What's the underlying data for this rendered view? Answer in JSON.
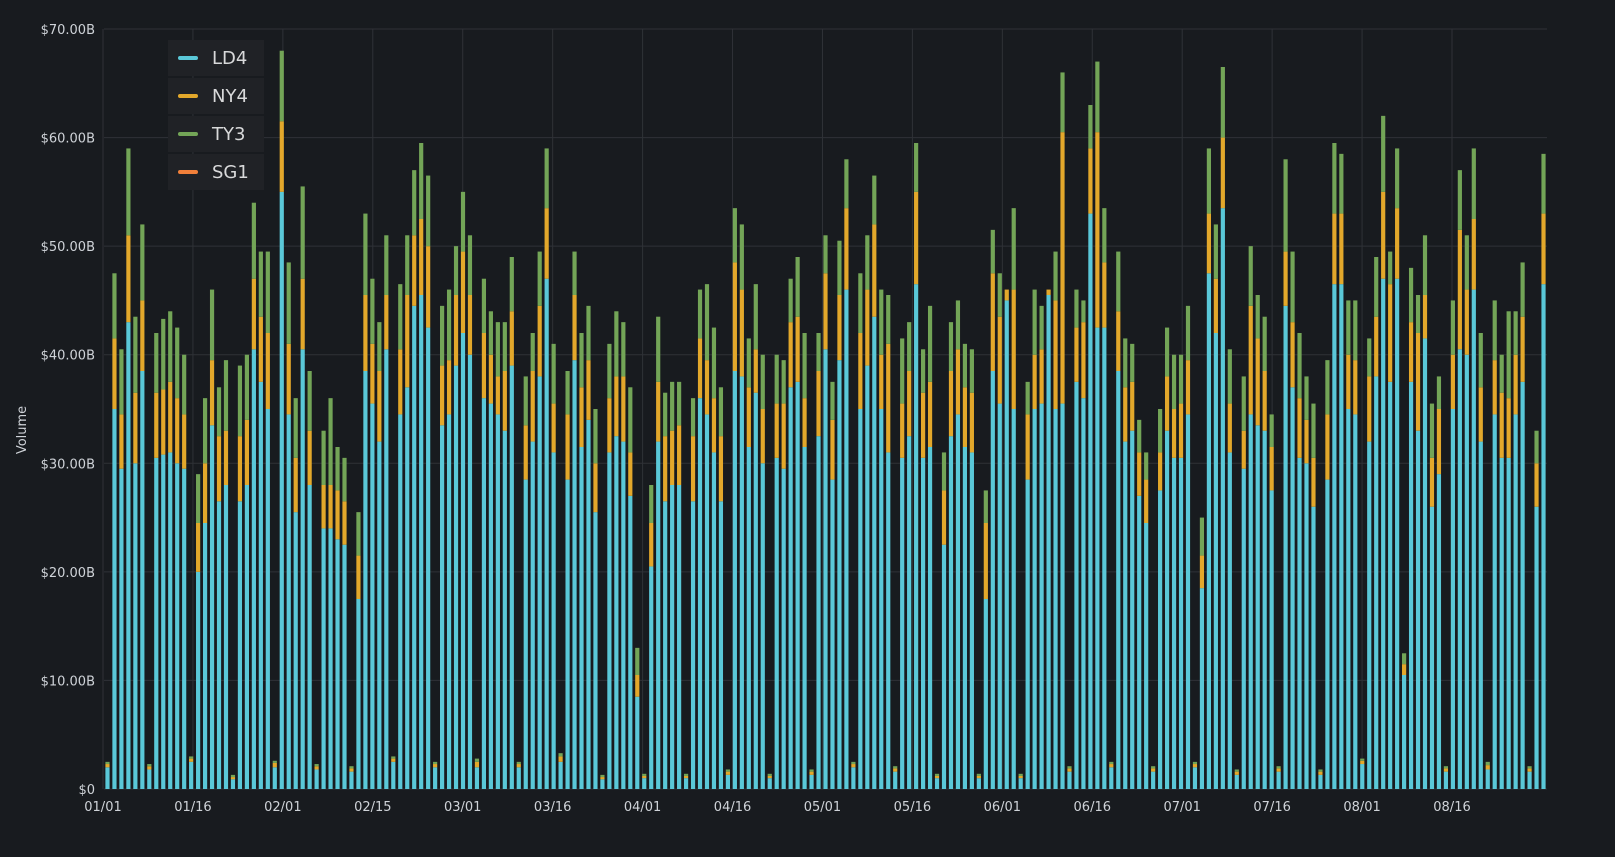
{
  "chart_data": {
    "type": "bar",
    "stacked": true,
    "ylabel": "Volume",
    "ylim": [
      0,
      70
    ],
    "y_unit": "billions USD",
    "y_ticks": [
      "$0",
      "$10.00B",
      "$20.00B",
      "$30.00B",
      "$40.00B",
      "$50.00B",
      "$60.00B",
      "$70.00B"
    ],
    "x_ticks": [
      "01/01",
      "01/16",
      "02/01",
      "02/15",
      "03/01",
      "03/16",
      "04/01",
      "04/16",
      "05/01",
      "05/16",
      "06/01",
      "06/16",
      "07/01",
      "07/16",
      "08/01",
      "08/16"
    ],
    "grid": true,
    "legend_placement": "top-left",
    "series_colors": {
      "LD4": "#5ac8d8",
      "NY4": "#e3a82b",
      "TY3": "#73a557",
      "SG1": "#f2803a"
    },
    "series_names": [
      "LD4",
      "NY4",
      "TY3",
      "SG1"
    ],
    "bars": [
      [
        2.0,
        0.3,
        0.2,
        0
      ],
      [
        35,
        6.5,
        6,
        0
      ],
      [
        29.5,
        5,
        6,
        0
      ],
      [
        43,
        8,
        8,
        0
      ],
      [
        30,
        6.5,
        7,
        0
      ],
      [
        38.5,
        6.5,
        7,
        0
      ],
      [
        1.8,
        0.3,
        0.2,
        0
      ],
      [
        30.5,
        6,
        5.5,
        0
      ],
      [
        30.8,
        6,
        6.5,
        0
      ],
      [
        31,
        6.5,
        6.5,
        0
      ],
      [
        30,
        6,
        6.5,
        0
      ],
      [
        29.5,
        5,
        5.5,
        0
      ],
      [
        2.5,
        0.3,
        0.2,
        0
      ],
      [
        20,
        4.5,
        4.5,
        0
      ],
      [
        24.5,
        5.5,
        6,
        0
      ],
      [
        33.5,
        6,
        6.5,
        0
      ],
      [
        26.5,
        6,
        4.5,
        0
      ],
      [
        28,
        5,
        6.5,
        0
      ],
      [
        0.9,
        0.2,
        0.2,
        0
      ],
      [
        26.5,
        6,
        6.5,
        0
      ],
      [
        28,
        6,
        6,
        0
      ],
      [
        40.5,
        6.5,
        7,
        0
      ],
      [
        37.5,
        6,
        6,
        0
      ],
      [
        35,
        7,
        7.5,
        0
      ],
      [
        2.0,
        0.4,
        0.2,
        0
      ],
      [
        55,
        6.5,
        6.5,
        0
      ],
      [
        34.5,
        6.5,
        7.5,
        0
      ],
      [
        25.5,
        5,
        5.5,
        0
      ],
      [
        40.5,
        6.5,
        8.5,
        0
      ],
      [
        28,
        5,
        5.5,
        0
      ],
      [
        1.8,
        0.3,
        0.2,
        0
      ],
      [
        24,
        4,
        5,
        0
      ],
      [
        24,
        4,
        8,
        0
      ],
      [
        23,
        4.5,
        4,
        0
      ],
      [
        22.5,
        4,
        4,
        0
      ],
      [
        1.6,
        0.3,
        0.2,
        0
      ],
      [
        17.5,
        4,
        4,
        0
      ],
      [
        38.5,
        7,
        7.5,
        0
      ],
      [
        35.5,
        5.5,
        6,
        0
      ],
      [
        32,
        6.5,
        4.5,
        0
      ],
      [
        40.5,
        5,
        5.5,
        0
      ],
      [
        2.5,
        0.3,
        0.2,
        0
      ],
      [
        34.5,
        6,
        6,
        0
      ],
      [
        37,
        8.5,
        5.5,
        0
      ],
      [
        44.5,
        6.5,
        6,
        0
      ],
      [
        45.5,
        7,
        7,
        0
      ],
      [
        42.5,
        7.5,
        6.5,
        0
      ],
      [
        2.0,
        0.3,
        0.2,
        0
      ],
      [
        33.5,
        5.5,
        5.5,
        0
      ],
      [
        34.5,
        5,
        6.5,
        0
      ],
      [
        39,
        6.5,
        4.5,
        0
      ],
      [
        42,
        7.5,
        5.5,
        0
      ],
      [
        40,
        5.5,
        5.5,
        0
      ],
      [
        2.0,
        0.5,
        0.3,
        0
      ],
      [
        36,
        6,
        5,
        0
      ],
      [
        35.5,
        4.5,
        4,
        0
      ],
      [
        34.5,
        3.5,
        5,
        0
      ],
      [
        33,
        5.5,
        4.5,
        0
      ],
      [
        39,
        5,
        5,
        0
      ],
      [
        2.0,
        0.3,
        0.2,
        0
      ],
      [
        28.5,
        5,
        4.5,
        0
      ],
      [
        32,
        6.5,
        3.5,
        0
      ],
      [
        38,
        6.5,
        5,
        0
      ],
      [
        47,
        6.5,
        5.5,
        0
      ],
      [
        31,
        4.5,
        5.5,
        0
      ],
      [
        2.5,
        0.5,
        0.3,
        0
      ],
      [
        28.5,
        6,
        4,
        0
      ],
      [
        39.5,
        6,
        4,
        0
      ],
      [
        31.5,
        5.5,
        5,
        0
      ],
      [
        34,
        5.5,
        5,
        0
      ],
      [
        25.5,
        4.5,
        5,
        0
      ],
      [
        0.9,
        0.2,
        0.2,
        0
      ],
      [
        31,
        5,
        5,
        0
      ],
      [
        32.5,
        5.5,
        6,
        0
      ],
      [
        32,
        6,
        5,
        0
      ],
      [
        27,
        4,
        6,
        0
      ],
      [
        8.5,
        2,
        2.5,
        0
      ],
      [
        1.0,
        0.2,
        0.2,
        0
      ],
      [
        20.5,
        4,
        3.5,
        0
      ],
      [
        32,
        5.5,
        6,
        0
      ],
      [
        26.5,
        6,
        4,
        0
      ],
      [
        28,
        5,
        4.5,
        0
      ],
      [
        28,
        5.5,
        4,
        0
      ],
      [
        1.0,
        0.2,
        0.2,
        0
      ],
      [
        26.5,
        6,
        3.5,
        0
      ],
      [
        36,
        5.5,
        4.5,
        0
      ],
      [
        34.5,
        5,
        7,
        0
      ],
      [
        31,
        5,
        6.5,
        0
      ],
      [
        26.5,
        6,
        4.5,
        0
      ],
      [
        1.3,
        0.3,
        0.2,
        0
      ],
      [
        38.5,
        10,
        5,
        0
      ],
      [
        38,
        8,
        6,
        0
      ],
      [
        31.5,
        5.5,
        4.5,
        0
      ],
      [
        36.5,
        4,
        6,
        0
      ],
      [
        30,
        5,
        5,
        0
      ],
      [
        1.0,
        0.2,
        0.2,
        0
      ],
      [
        30.5,
        5,
        4.5,
        0
      ],
      [
        29.5,
        6,
        4,
        0
      ],
      [
        37,
        6,
        4,
        0
      ],
      [
        37.5,
        6,
        5.5,
        0
      ],
      [
        31.5,
        4.5,
        6,
        0
      ],
      [
        1.3,
        0.3,
        0.2,
        0
      ],
      [
        32.5,
        6,
        3.5,
        0
      ],
      [
        40.5,
        7,
        3.5,
        0
      ],
      [
        28.5,
        5.5,
        3.5,
        0
      ],
      [
        39.5,
        6,
        5,
        0
      ],
      [
        46,
        7.5,
        4.5,
        0
      ],
      [
        2.0,
        0.3,
        0.2,
        0
      ],
      [
        35,
        7,
        5.5,
        0
      ],
      [
        39,
        7,
        5,
        0
      ],
      [
        43.5,
        8.5,
        4.5,
        0
      ],
      [
        35,
        5,
        6,
        0
      ],
      [
        31,
        10,
        4.5,
        0
      ],
      [
        1.6,
        0.3,
        0.2,
        0
      ],
      [
        30.5,
        5,
        6,
        0
      ],
      [
        32.5,
        6,
        4.5,
        0
      ],
      [
        46.5,
        8.5,
        4.5,
        0
      ],
      [
        30.5,
        6,
        4,
        0
      ],
      [
        31.5,
        6,
        7,
        0
      ],
      [
        1.0,
        0.2,
        0.2,
        0
      ],
      [
        22.5,
        5,
        3.5,
        0
      ],
      [
        32.5,
        6,
        4.5,
        0
      ],
      [
        34.5,
        6,
        4.5,
        0
      ],
      [
        31.5,
        5.5,
        4,
        0
      ],
      [
        31,
        5.5,
        4,
        0
      ],
      [
        1.0,
        0.2,
        0.2,
        0
      ],
      [
        17.5,
        7,
        3,
        0
      ],
      [
        38.5,
        9,
        4,
        0
      ],
      [
        35.5,
        8,
        4,
        0
      ],
      [
        45,
        1,
        0,
        0
      ],
      [
        35,
        11,
        7.5,
        0
      ],
      [
        1.0,
        0.2,
        0.2,
        0
      ],
      [
        28.5,
        6,
        3,
        0
      ],
      [
        35,
        5,
        6,
        0
      ],
      [
        35.5,
        5,
        4,
        0
      ],
      [
        45.5,
        0.5,
        0,
        0
      ],
      [
        35,
        10,
        4.5,
        0
      ],
      [
        35.5,
        25,
        5.5,
        0
      ],
      [
        1.6,
        0.3,
        0.2,
        0
      ],
      [
        37.5,
        5,
        3.5,
        0
      ],
      [
        36,
        7,
        2,
        0
      ],
      [
        53,
        6,
        4,
        0
      ],
      [
        42.5,
        18,
        6.5,
        0
      ],
      [
        42.5,
        6,
        5,
        0
      ],
      [
        2.0,
        0.3,
        0.2,
        0
      ],
      [
        38.5,
        5.5,
        5.5,
        0
      ],
      [
        32,
        5,
        4.5,
        0
      ],
      [
        33,
        4.5,
        3.5,
        0
      ],
      [
        27,
        4,
        3,
        0
      ],
      [
        24.5,
        4,
        2.5,
        0
      ],
      [
        1.6,
        0.3,
        0.2,
        0
      ],
      [
        27.5,
        3.5,
        4,
        0
      ],
      [
        33,
        5,
        4.5,
        0
      ],
      [
        30.5,
        4.5,
        5,
        0
      ],
      [
        30.5,
        5,
        4.5,
        0
      ],
      [
        34.5,
        5,
        5,
        0
      ],
      [
        2.0,
        0.3,
        0.2,
        0
      ],
      [
        18.5,
        3,
        3.5,
        0
      ],
      [
        47.5,
        5.5,
        6,
        0
      ],
      [
        42,
        5,
        5,
        0
      ],
      [
        53.5,
        6.5,
        6.5,
        0
      ],
      [
        31,
        4.5,
        5,
        0
      ],
      [
        1.3,
        0.3,
        0.2,
        0
      ],
      [
        29.5,
        3.5,
        5,
        0
      ],
      [
        34.5,
        10,
        5.5,
        0
      ],
      [
        33.5,
        8,
        4,
        0
      ],
      [
        33,
        5.5,
        5,
        0
      ],
      [
        27.5,
        4,
        3,
        0
      ],
      [
        1.6,
        0.3,
        0.2,
        0
      ],
      [
        44.5,
        5,
        8.5,
        0
      ],
      [
        37,
        6,
        6.5,
        0
      ],
      [
        30.5,
        5.5,
        6,
        0
      ],
      [
        30,
        4,
        4,
        0
      ],
      [
        26,
        4.5,
        5,
        0
      ],
      [
        1.3,
        0.3,
        0.2,
        0
      ],
      [
        28.5,
        6,
        5,
        0
      ],
      [
        46.5,
        6.5,
        6.5,
        0
      ],
      [
        46.5,
        6.5,
        5.5,
        0
      ],
      [
        35,
        5,
        5,
        0
      ],
      [
        34.5,
        5,
        5.5,
        0
      ],
      [
        2.3,
        0.3,
        0.2,
        0
      ],
      [
        32,
        6,
        3.5,
        0
      ],
      [
        38,
        5.5,
        5.5,
        0
      ],
      [
        47,
        8,
        7,
        0
      ],
      [
        37.5,
        9,
        3,
        0
      ],
      [
        47,
        6.5,
        5.5,
        0
      ],
      [
        10.5,
        1,
        1,
        0
      ],
      [
        37.5,
        5.5,
        5,
        0
      ],
      [
        33,
        9,
        3.5,
        0
      ],
      [
        41.5,
        4,
        5.5,
        0
      ],
      [
        26,
        4.5,
        5,
        0
      ],
      [
        29,
        6,
        3,
        0
      ],
      [
        1.6,
        0.3,
        0.2,
        0
      ],
      [
        35,
        5,
        5,
        0
      ],
      [
        40.5,
        11,
        5.5,
        0
      ],
      [
        40,
        6,
        5,
        0
      ],
      [
        46,
        6.5,
        6.5,
        0
      ],
      [
        32,
        5,
        5,
        0
      ],
      [
        1.8,
        0.4,
        0.3,
        0
      ],
      [
        34.5,
        5,
        5.5,
        0
      ],
      [
        30.5,
        6,
        3.5,
        0
      ],
      [
        30.5,
        5.5,
        8,
        0
      ],
      [
        34.5,
        5.5,
        4,
        0
      ],
      [
        37.5,
        6,
        5,
        0
      ],
      [
        1.6,
        0.3,
        0.2,
        0
      ],
      [
        26,
        4,
        3,
        0
      ],
      [
        46.5,
        6.5,
        5.5,
        0
      ]
    ]
  }
}
